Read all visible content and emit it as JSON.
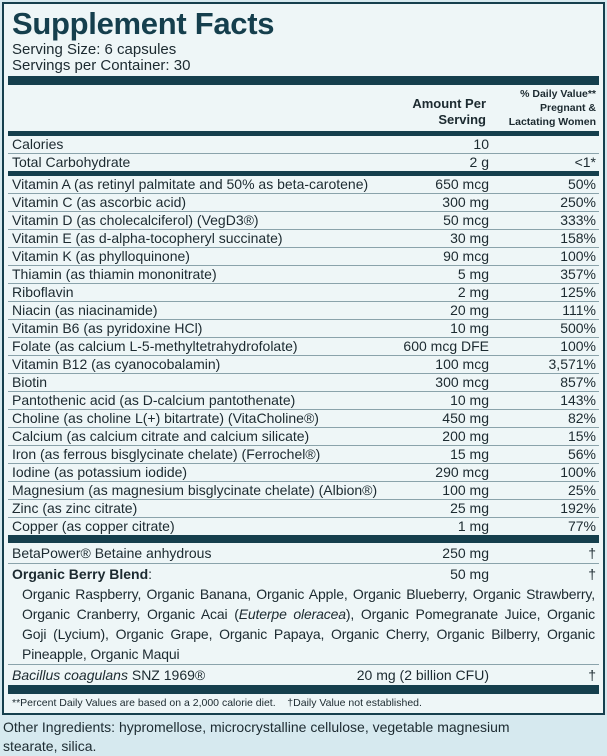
{
  "title": "Supplement Facts",
  "serving_size": "Serving Size: 6 capsules",
  "servings_per_container": "Servings per Container: 30",
  "header": {
    "amount": [
      "Amount Per",
      "Serving"
    ],
    "dv": [
      "% Daily Value**",
      "Pregnant &",
      "Lactating Women"
    ]
  },
  "top_rows": [
    {
      "name": "Calories",
      "amount": "10",
      "dv": ""
    },
    {
      "name": "Total Carbohydrate",
      "amount": "2 g",
      "dv": "<1*"
    }
  ],
  "vitamin_rows": [
    {
      "name": "Vitamin A (as retinyl palmitate and 50% as beta-carotene)",
      "amount": "650 mcg",
      "dv": "50%"
    },
    {
      "name": "Vitamin C (as ascorbic acid)",
      "amount": "300 mg",
      "dv": "250%"
    },
    {
      "name": "Vitamin D (as cholecalciferol) (VegD3®)",
      "amount": "50 mcg",
      "dv": "333%"
    },
    {
      "name": "Vitamin E (as d-alpha-tocopheryl succinate)",
      "amount": "30 mg",
      "dv": "158%"
    },
    {
      "name": "Vitamin K (as phylloquinone)",
      "amount": "90 mcg",
      "dv": "100%"
    },
    {
      "name": "Thiamin (as thiamin mononitrate)",
      "amount": "5 mg",
      "dv": "357%"
    },
    {
      "name": "Riboflavin",
      "amount": "2 mg",
      "dv": "125%"
    },
    {
      "name": "Niacin (as niacinamide)",
      "amount": "20 mg",
      "dv": "111%"
    },
    {
      "name": "Vitamin B6 (as pyridoxine HCl)",
      "amount": "10 mg",
      "dv": "500%"
    },
    {
      "name": "Folate (as calcium L-5-methyltetrahydrofolate)",
      "amount": "600 mcg DFE",
      "dv": "100%"
    },
    {
      "name": "Vitamin B12 (as cyanocobalamin)",
      "amount": "100 mcg",
      "dv": "3,571%"
    },
    {
      "name": "Biotin",
      "amount": "300 mcg",
      "dv": "857%"
    },
    {
      "name": "Pantothenic acid (as D-calcium pantothenate)",
      "amount": "10 mg",
      "dv": "143%"
    },
    {
      "name": "Choline (as choline L(+) bitartrate) (VitaCholine®)",
      "amount": "450 mg",
      "dv": "82%"
    },
    {
      "name": "Calcium (as calcium citrate and calcium silicate)",
      "amount": "200 mg",
      "dv": "15%"
    },
    {
      "name": "Iron (as ferrous bisglycinate chelate) (Ferrochel®)",
      "amount": "15 mg",
      "dv": "56%"
    },
    {
      "name": "Iodine (as potassium iodide)",
      "amount": "290 mcg",
      "dv": "100%"
    },
    {
      "name": "Magnesium (as magnesium bisglycinate chelate) (Albion®)",
      "amount": "100 mg",
      "dv": "25%"
    },
    {
      "name": "Zinc (as zinc citrate)",
      "amount": "25 mg",
      "dv": "192%"
    },
    {
      "name": "Copper (as copper citrate)",
      "amount": "1 mg",
      "dv": "77%"
    }
  ],
  "betapower": {
    "name": "BetaPower® Betaine anhydrous",
    "amount": "250 mg",
    "dv": "†"
  },
  "berry": {
    "name": "Organic Berry Blend",
    "colon": ":",
    "amount": "50 mg",
    "dv": "†",
    "ingredients_a": "Organic Raspberry, Organic Banana, Organic Apple, Organic Blueberry, Organic Strawberry, Organic Cranberry, Organic Acai (",
    "latin": "Euterpe oleracea",
    "ingredients_b": "), Organic Pomegranate Juice, Organic Goji (Lycium), Organic Grape, Organic Papaya, Organic Cherry, Organic Bilberry, Organic Pineapple, Organic Maqui"
  },
  "bacillus": {
    "name_italic": "Bacillus coagulans",
    "name_rest": " SNZ 1969®",
    "amount": "20 mg (2 billion CFU)",
    "dv": "†"
  },
  "footnote": "**Percent Daily Values are based on a 2,000 calorie diet.    †Daily Value not established.",
  "other_ingredients": "Other Ingredients: hypromellose, microcrystalline cellulose, vegetable magnesium stearate, silica."
}
